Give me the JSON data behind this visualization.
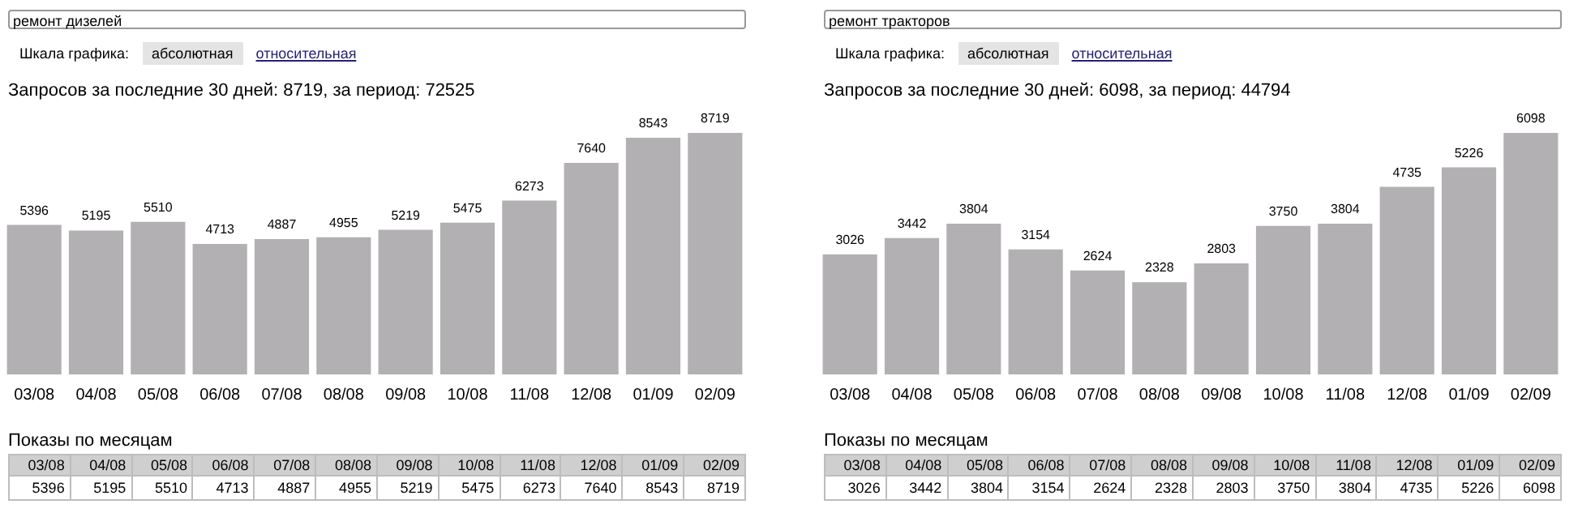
{
  "chart_data": [
    {
      "type": "bar",
      "title": "ремонт дизелей",
      "subtitle": "Запросов за последние 30 дней: 8719, за период: 72525",
      "annotations": [
        "Шкала графика:",
        "абсолютная",
        "относительная",
        "Показы по месяцам"
      ],
      "categories": [
        "03/08",
        "04/08",
        "05/08",
        "06/08",
        "07/08",
        "08/08",
        "09/08",
        "10/08",
        "11/08",
        "12/08",
        "01/09",
        "02/09"
      ],
      "values": [
        5396,
        5195,
        5510,
        4713,
        4887,
        4955,
        5219,
        5475,
        6273,
        7640,
        8543,
        8719
      ],
      "value_labels": [
        "5396",
        "5195",
        "5510",
        "4713",
        "4887",
        "4955",
        "5219",
        "5475",
        "6273",
        "7640",
        "8543",
        "8719"
      ],
      "color": "#b2b0b2",
      "data_labels": true
    },
    {
      "type": "bar",
      "title": "ремонт тракторов",
      "subtitle": "Запросов за последние 30 дней: 6098, за период: 44794",
      "annotations": [
        "Шкала графика:",
        "абсолютная",
        "относительная",
        "Показы по месяцам"
      ],
      "categories": [
        "03/08",
        "04/08",
        "05/08",
        "06/08",
        "07/08",
        "08/08",
        "09/08",
        "10/08",
        "11/08",
        "12/08",
        "01/09",
        "02/09"
      ],
      "values": [
        3026,
        3442,
        3804,
        3154,
        2624,
        2328,
        2803,
        3750,
        3804,
        4735,
        5226,
        6098
      ],
      "value_labels": [
        "3026",
        "3442",
        "3804",
        "3154",
        "2624",
        "2328",
        "2803",
        "3750",
        "3804",
        "4735",
        "5226",
        "6098"
      ],
      "color": "#b2b0b2",
      "data_labels": true
    }
  ]
}
